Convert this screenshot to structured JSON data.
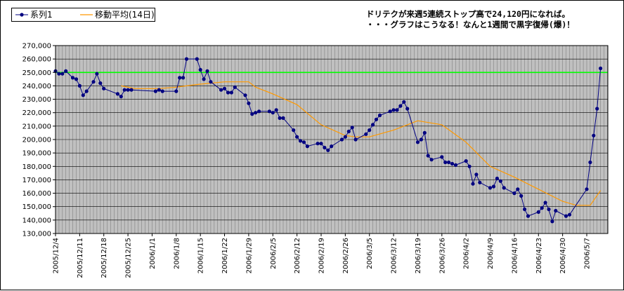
{
  "legend": {
    "series_label": "系列1",
    "ma_label": "移動平均(14日)"
  },
  "annotation": {
    "line1": "ドリテクが来週5連続ストップ高で24,120円になれば。",
    "line2": "・・・グラフはこうなる！なんと1週間で黒字復帰(爆)！"
  },
  "colors": {
    "plot_bg": "#c0c0c0",
    "grid": "#808080",
    "series": "#000080",
    "moving_average": "#ff9900",
    "target_line": "#00ff00"
  },
  "chart_data": {
    "type": "line",
    "title": "",
    "xlabel": "",
    "ylabel": "",
    "ylim": [
      130000,
      270000
    ],
    "ytick_step": 10000,
    "y_ticks": [
      "130,000",
      "140,000",
      "150,000",
      "160,000",
      "170,000",
      "180,000",
      "190,000",
      "200,000",
      "210,000",
      "220,000",
      "230,000",
      "240,000",
      "250,000",
      "260,000",
      "270,000"
    ],
    "x_range": [
      "2005/12/4",
      "2006/5/10"
    ],
    "x_ticks": [
      "2005/12/4",
      "2005/12/11",
      "2005/12/18",
      "2005/12/25",
      "2006/1/1",
      "2006/1/8",
      "2006/1/15",
      "2006/1/22",
      "2006/1/29",
      "2006/2/5",
      "2006/2/12",
      "2006/2/19",
      "2006/2/26",
      "2006/3/5",
      "2006/3/12",
      "2006/3/19",
      "2006/3/26",
      "2006/4/2",
      "2006/4/9",
      "2006/4/16",
      "2006/4/23",
      "2006/4/30",
      "2006/5/7"
    ],
    "grid": true,
    "legend_position": "top-left",
    "reference_line": {
      "y": 250000
    },
    "series": [
      {
        "name": "系列1",
        "points": [
          [
            "2005/12/4",
            251000
          ],
          [
            "2005/12/5",
            249000
          ],
          [
            "2005/12/6",
            249000
          ],
          [
            "2005/12/7",
            251000
          ],
          [
            "2005/12/9",
            246000
          ],
          [
            "2005/12/10",
            245000
          ],
          [
            "2005/12/11",
            240000
          ],
          [
            "2005/12/12",
            233000
          ],
          [
            "2005/12/13",
            236000
          ],
          [
            "2005/12/15",
            243000
          ],
          [
            "2005/12/16",
            249000
          ],
          [
            "2005/12/17",
            242000
          ],
          [
            "2005/12/18",
            238000
          ],
          [
            "2005/12/22",
            234000
          ],
          [
            "2005/12/23",
            232000
          ],
          [
            "2005/12/24",
            237000
          ],
          [
            "2005/12/25",
            237000
          ],
          [
            "2005/12/26",
            237000
          ],
          [
            "2006/1/2",
            236000
          ],
          [
            "2006/1/3",
            237000
          ],
          [
            "2006/1/4",
            236000
          ],
          [
            "2006/1/8",
            236000
          ],
          [
            "2006/1/9",
            246000
          ],
          [
            "2006/1/10",
            246000
          ],
          [
            "2006/1/11",
            260000
          ],
          [
            "2006/1/14",
            260000
          ],
          [
            "2006/1/15",
            252000
          ],
          [
            "2006/1/16",
            245000
          ],
          [
            "2006/1/17",
            251000
          ],
          [
            "2006/1/18",
            243000
          ],
          [
            "2006/1/21",
            237000
          ],
          [
            "2006/1/22",
            238000
          ],
          [
            "2006/1/23",
            235000
          ],
          [
            "2006/1/24",
            235000
          ],
          [
            "2006/1/25",
            239000
          ],
          [
            "2006/1/28",
            233000
          ],
          [
            "2006/1/29",
            227000
          ],
          [
            "2006/1/30",
            219000
          ],
          [
            "2006/1/31",
            220000
          ],
          [
            "2006/2/1",
            221000
          ],
          [
            "2006/2/4",
            221000
          ],
          [
            "2006/2/5",
            220000
          ],
          [
            "2006/2/6",
            222000
          ],
          [
            "2006/2/7",
            216000
          ],
          [
            "2006/2/8",
            216000
          ],
          [
            "2006/2/11",
            207000
          ],
          [
            "2006/2/12",
            202000
          ],
          [
            "2006/2/13",
            199000
          ],
          [
            "2006/2/14",
            198000
          ],
          [
            "2006/2/15",
            195000
          ],
          [
            "2006/2/18",
            197000
          ],
          [
            "2006/2/19",
            197000
          ],
          [
            "2006/2/20",
            194000
          ],
          [
            "2006/2/21",
            192000
          ],
          [
            "2006/2/22",
            195000
          ],
          [
            "2006/2/25",
            200000
          ],
          [
            "2006/2/26",
            202000
          ],
          [
            "2006/2/27",
            206000
          ],
          [
            "2006/2/28",
            209000
          ],
          [
            "2006/3/1",
            200000
          ],
          [
            "2006/3/4",
            204000
          ],
          [
            "2006/3/5",
            207000
          ],
          [
            "2006/3/6",
            211000
          ],
          [
            "2006/3/7",
            215000
          ],
          [
            "2006/3/8",
            218000
          ],
          [
            "2006/3/11",
            221000
          ],
          [
            "2006/3/12",
            222000
          ],
          [
            "2006/3/13",
            222000
          ],
          [
            "2006/3/14",
            225000
          ],
          [
            "2006/3/15",
            228000
          ],
          [
            "2006/3/16",
            223000
          ],
          [
            "2006/3/19",
            198000
          ],
          [
            "2006/3/20",
            200000
          ],
          [
            "2006/3/21",
            205000
          ],
          [
            "2006/3/22",
            188000
          ],
          [
            "2006/3/23",
            185000
          ],
          [
            "2006/3/26",
            187000
          ],
          [
            "2006/3/27",
            183000
          ],
          [
            "2006/3/28",
            183000
          ],
          [
            "2006/3/29",
            182000
          ],
          [
            "2006/3/30",
            181000
          ],
          [
            "2006/4/2",
            184000
          ],
          [
            "2006/4/3",
            180000
          ],
          [
            "2006/4/4",
            167000
          ],
          [
            "2006/4/5",
            174000
          ],
          [
            "2006/4/6",
            168000
          ],
          [
            "2006/4/9",
            164000
          ],
          [
            "2006/4/10",
            165000
          ],
          [
            "2006/4/11",
            171000
          ],
          [
            "2006/4/12",
            169000
          ],
          [
            "2006/4/13",
            164000
          ],
          [
            "2006/4/16",
            160000
          ],
          [
            "2006/4/17",
            163000
          ],
          [
            "2006/4/18",
            158000
          ],
          [
            "2006/4/19",
            148000
          ],
          [
            "2006/4/20",
            143000
          ],
          [
            "2006/4/23",
            146000
          ],
          [
            "2006/4/24",
            149000
          ],
          [
            "2006/4/25",
            153000
          ],
          [
            "2006/4/26",
            148000
          ],
          [
            "2006/4/27",
            139000
          ],
          [
            "2006/4/28",
            147000
          ],
          [
            "2006/5/1",
            143000
          ],
          [
            "2006/5/2",
            144000
          ],
          [
            "2006/5/7",
            163000
          ],
          [
            "2006/5/8",
            183000
          ],
          [
            "2006/5/9",
            203000
          ],
          [
            "2006/5/10",
            223000
          ],
          [
            "2006/5/11",
            253000
          ]
        ]
      },
      {
        "name": "移動平均(14日)",
        "points": [
          [
            "2005/12/23",
            240000
          ],
          [
            "2005/12/27",
            238000
          ],
          [
            "2006/1/3",
            238000
          ],
          [
            "2006/1/8",
            239000
          ],
          [
            "2006/1/14",
            241000
          ],
          [
            "2006/1/22",
            243000
          ],
          [
            "2006/1/29",
            243000
          ],
          [
            "2006/1/31",
            239000
          ],
          [
            "2006/2/5",
            234000
          ],
          [
            "2006/2/12",
            226000
          ],
          [
            "2006/2/19",
            211000
          ],
          [
            "2006/2/26",
            203000
          ],
          [
            "2006/3/1",
            202000
          ],
          [
            "2006/3/5",
            202000
          ],
          [
            "2006/3/12",
            207000
          ],
          [
            "2006/3/19",
            214000
          ],
          [
            "2006/3/26",
            211000
          ],
          [
            "2006/4/2",
            198000
          ],
          [
            "2006/4/9",
            180000
          ],
          [
            "2006/4/16",
            172000
          ],
          [
            "2006/4/23",
            163000
          ],
          [
            "2006/4/30",
            154000
          ],
          [
            "2006/5/4",
            151000
          ],
          [
            "2006/5/8",
            151000
          ],
          [
            "2006/5/11",
            162000
          ]
        ]
      }
    ]
  }
}
